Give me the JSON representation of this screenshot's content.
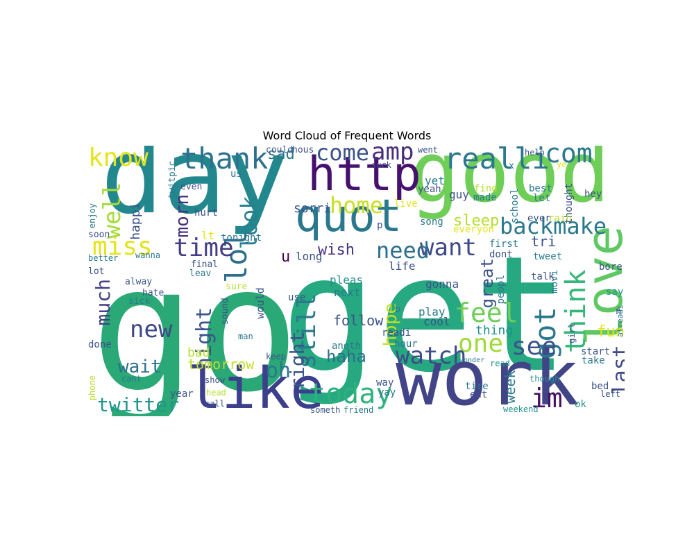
{
  "title": "Word Cloud of Frequent Words",
  "palette": {
    "yellow": "#e5e419",
    "lime": "#b5de2b",
    "lightgreen": "#6ece58",
    "green": "#35b779",
    "teal": "#1f9e89",
    "cyan": "#26828e",
    "blue": "#31688e",
    "indigo": "#3e4a89",
    "purple": "#482878",
    "darkpurple": "#440154"
  },
  "words": [
    {
      "text": "go",
      "color": "#2aa876"
    },
    {
      "text": "get",
      "color": "#26a881"
    },
    {
      "text": "day",
      "color": "#23888e"
    },
    {
      "text": "good",
      "color": "#6ece58"
    },
    {
      "text": "work",
      "color": "#414487"
    },
    {
      "text": "like",
      "color": "#3b3f8c"
    },
    {
      "text": "love",
      "color": "#5ec962"
    },
    {
      "text": "http",
      "color": "#46106f"
    },
    {
      "text": "quot",
      "color": "#2a788e"
    },
    {
      "text": "today",
      "color": "#2db27d"
    },
    {
      "text": "realli",
      "color": "#2a778e"
    },
    {
      "text": "thank",
      "color": "#2c718e"
    },
    {
      "text": "know",
      "color": "#e5e419"
    },
    {
      "text": "com",
      "color": "#2a788e"
    },
    {
      "text": "amp",
      "color": "#472d7b"
    },
    {
      "text": "come",
      "color": "#3b528b"
    },
    {
      "text": "home",
      "color": "#c7e020"
    },
    {
      "text": "backmake",
      "color": "#2a788e"
    },
    {
      "text": "think",
      "color": "#35b779"
    },
    {
      "text": "got",
      "color": "#2a788e"
    },
    {
      "text": "lol",
      "color": "#2d708e"
    },
    {
      "text": "feel",
      "color": "#6ece58"
    },
    {
      "text": "see",
      "color": "#3b528b"
    },
    {
      "text": "one",
      "color": "#9fda3a"
    },
    {
      "text": "watch",
      "color": "#3e4a89"
    },
    {
      "text": "im",
      "color": "#471164"
    },
    {
      "text": "want",
      "color": "#3e4989"
    },
    {
      "text": "need",
      "color": "#2d708e"
    },
    {
      "text": "time",
      "color": "#433e85"
    },
    {
      "text": "miss",
      "color": "#e5e419"
    },
    {
      "text": "well",
      "color": "#a5db36"
    },
    {
      "text": "look",
      "color": "#277f8e"
    },
    {
      "text": "morn",
      "color": "#46307e"
    },
    {
      "text": "night",
      "color": "#3b528b"
    },
    {
      "text": "new",
      "color": "#3f4788"
    },
    {
      "text": "still",
      "color": "#2a778e"
    },
    {
      "text": "right",
      "color": "#3b528b"
    },
    {
      "text": "much",
      "color": "#423f85"
    },
    {
      "text": "twitter",
      "color": "#1f968b"
    },
    {
      "text": "oh",
      "color": "#2a788e"
    },
    {
      "text": "tomorrow",
      "color": "#c2df23"
    },
    {
      "text": "wait",
      "color": "#2c728e"
    },
    {
      "text": "haha",
      "color": "#2e6e8e"
    },
    {
      "text": "hope",
      "color": "#c2df23"
    },
    {
      "text": "last",
      "color": "#3e4a89"
    },
    {
      "text": "great",
      "color": "#3b528b"
    },
    {
      "text": "sleep",
      "color": "#b5de2b"
    },
    {
      "text": "sad",
      "color": "#2a788e"
    },
    {
      "text": "wish",
      "color": "#46337f"
    },
    {
      "text": "sorri",
      "color": "#3b528b"
    },
    {
      "text": "follow",
      "color": "#3b528b"
    },
    {
      "text": "fun",
      "color": "#e5e419"
    },
    {
      "text": "thing",
      "color": "#21918c"
    },
    {
      "text": "week",
      "color": "#2a788e"
    },
    {
      "text": "tri",
      "color": "#3b528b"
    },
    {
      "text": "happi",
      "color": "#3b528b"
    },
    {
      "text": "u",
      "color": "#440154"
    },
    {
      "text": "bad",
      "color": "#b5de2b"
    },
    {
      "text": "guy",
      "color": "#3b528b"
    },
    {
      "text": "yet",
      "color": "#2a788e"
    },
    {
      "text": "pleas",
      "color": "#21918c"
    },
    {
      "text": "next",
      "color": "#2a788e"
    },
    {
      "text": "gonna",
      "color": "#3b528b"
    },
    {
      "text": "anoth",
      "color": "#2a788e"
    },
    {
      "text": "life",
      "color": "#3b528b"
    },
    {
      "text": "play",
      "color": "#2a788e"
    },
    {
      "text": "cool",
      "color": "#3b528b"
    },
    {
      "text": "readi",
      "color": "#3b528b"
    },
    {
      "text": "hour",
      "color": "#2a788e"
    },
    {
      "text": "way",
      "color": "#3b528b"
    },
    {
      "text": "yay",
      "color": "#2a788e"
    },
    {
      "text": "use",
      "color": "#3b528b"
    },
    {
      "text": "long",
      "color": "#3b528b"
    },
    {
      "text": "lt",
      "color": "#e5e419"
    },
    {
      "text": "tonight",
      "color": "#2a788e"
    },
    {
      "text": "hurt",
      "color": "#3b528b"
    },
    {
      "text": "live",
      "color": "#e5e419"
    },
    {
      "text": "song",
      "color": "#2a788e"
    },
    {
      "text": "everyon",
      "color": "#e5e419"
    },
    {
      "text": "made",
      "color": "#2a788e"
    },
    {
      "text": "find",
      "color": "#b5de2b"
    },
    {
      "text": "yeah",
      "color": "#3b528b"
    },
    {
      "text": "best",
      "color": "#2a788e"
    },
    {
      "text": "let",
      "color": "#2a788e"
    },
    {
      "text": "school",
      "color": "#2a788e"
    },
    {
      "text": "thought",
      "color": "#3b528b"
    },
    {
      "text": "hey",
      "color": "#3b528b"
    },
    {
      "text": "ever",
      "color": "#3b528b"
    },
    {
      "text": "rain",
      "color": "#b5de2b"
    },
    {
      "text": "tweet",
      "color": "#2a788e"
    },
    {
      "text": "talk",
      "color": "#3b528b"
    },
    {
      "text": "bore",
      "color": "#3b528b"
    },
    {
      "text": "say",
      "color": "#21918c"
    },
    {
      "text": "movi",
      "color": "#2a788e"
    },
    {
      "text": "peopl",
      "color": "#2a788e"
    },
    {
      "text": "dont",
      "color": "#3b528b"
    },
    {
      "text": "first",
      "color": "#2a788e"
    },
    {
      "text": "start",
      "color": "#3b528b"
    },
    {
      "text": "take",
      "color": "#2a788e"
    },
    {
      "text": "bed",
      "color": "#3b528b"
    },
    {
      "text": "ok",
      "color": "#21918c"
    },
    {
      "text": "left",
      "color": "#3b528b"
    },
    {
      "text": "alreadi",
      "color": "#2a788e"
    },
    {
      "text": "girl",
      "color": "#3b528b"
    },
    {
      "text": "tire",
      "color": "#2a788e"
    },
    {
      "text": "eat",
      "color": "#3b528b"
    },
    {
      "text": "weekend",
      "color": "#21918c"
    },
    {
      "text": "though",
      "color": "#21918c"
    },
    {
      "text": "read",
      "color": "#21918c"
    },
    {
      "text": "wonder",
      "color": "#2a788e"
    },
    {
      "text": "friend",
      "color": "#2a788e"
    },
    {
      "text": "someth",
      "color": "#3b528b"
    },
    {
      "text": "call",
      "color": "#3b528b"
    },
    {
      "text": "head",
      "color": "#b5de2b"
    },
    {
      "text": "show",
      "color": "#3b528b"
    },
    {
      "text": "year",
      "color": "#3b528b"
    },
    {
      "text": "cant",
      "color": "#2a788e"
    },
    {
      "text": "phone",
      "color": "#b5de2b"
    },
    {
      "text": "done",
      "color": "#3b528b"
    },
    {
      "text": "keep",
      "color": "#3b528b"
    },
    {
      "text": "sick",
      "color": "#2a788e"
    },
    {
      "text": "hate",
      "color": "#3b528b"
    },
    {
      "text": "alway",
      "color": "#3b528b"
    },
    {
      "text": "final",
      "color": "#3b528b"
    },
    {
      "text": "leav",
      "color": "#2a788e"
    },
    {
      "text": "sure",
      "color": "#b5de2b"
    },
    {
      "text": "would",
      "color": "#3b528b"
    },
    {
      "text": "sound",
      "color": "#3b528b"
    },
    {
      "text": "man",
      "color": "#2a788e"
    },
    {
      "text": "soon",
      "color": "#3b528b"
    },
    {
      "text": "enjoy",
      "color": "#2a788e"
    },
    {
      "text": "better",
      "color": "#2a788e"
    },
    {
      "text": "lot",
      "color": "#3b528b"
    },
    {
      "text": "wanna",
      "color": "#2a788e"
    },
    {
      "text": "even",
      "color": "#3b528b"
    },
    {
      "text": "could",
      "color": "#3b528b"
    },
    {
      "text": "hous",
      "color": "#3b528b"
    },
    {
      "text": "suck",
      "color": "#3b528b"
    },
    {
      "text": "us",
      "color": "#2a788e"
    },
    {
      "text": "twitpic",
      "color": "#2a788e"
    },
    {
      "text": "went",
      "color": "#3b528b"
    },
    {
      "text": "help",
      "color": "#3b528b"
    },
    {
      "text": "ye",
      "color": "#e5e419"
    },
    {
      "text": "x",
      "color": "#2a788e"
    },
    {
      "text": "b",
      "color": "#2a788e"
    },
    {
      "text": "p",
      "color": "#3b528b"
    },
    {
      "text": "n",
      "color": "#3b528b"
    }
  ]
}
